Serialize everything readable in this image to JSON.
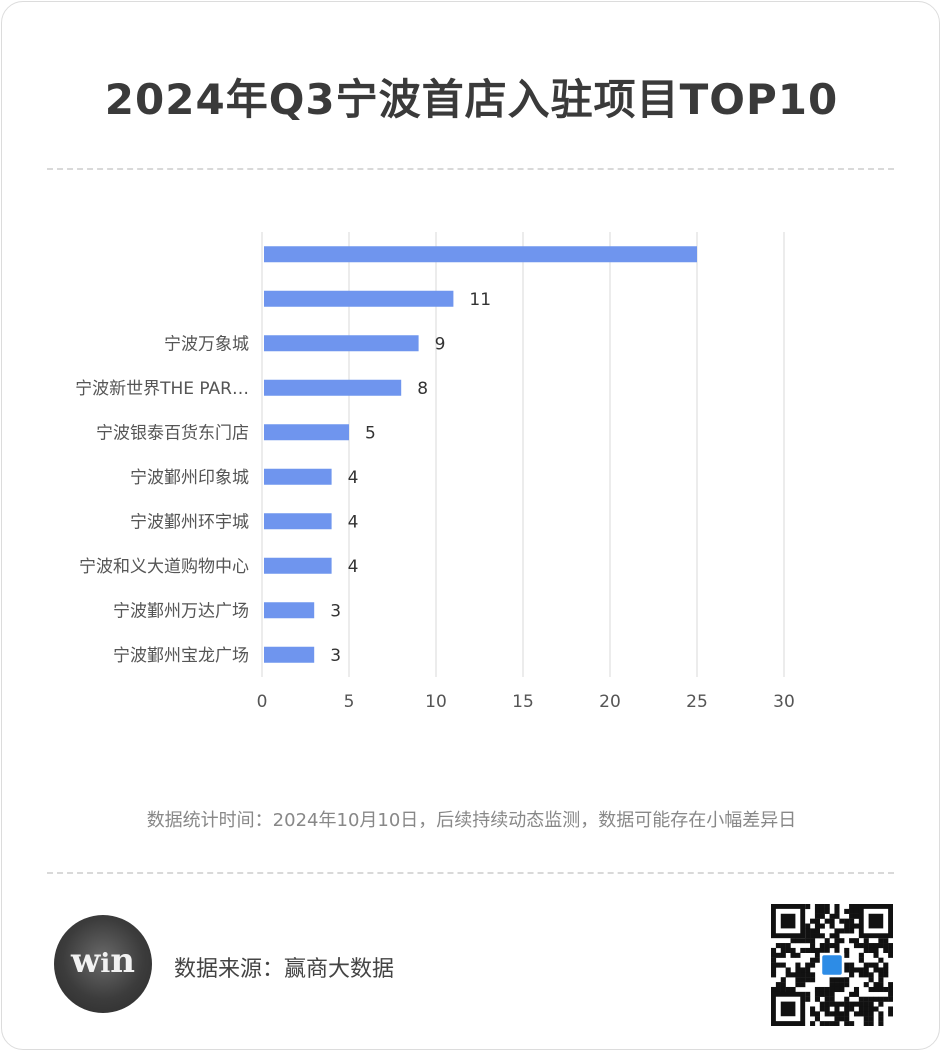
{
  "title": "2024年Q3宁波首店入驻项目TOP10",
  "footnote": "数据统计时间：2024年10月10日，后续持续动态监测，数据可能存在小幅差异日",
  "source": "数据来源：赢商大数据",
  "logo_icon": "winshang-logo-icon",
  "qr_icon": "qr-code-icon",
  "colors": {
    "bar": "#6f95ee",
    "grid": "#d9d9d9",
    "axis_text": "#555555"
  },
  "chart_data": {
    "type": "bar",
    "orientation": "horizontal",
    "categories": [
      "",
      "",
      "宁波万象城",
      "宁波新世界THE PAR…",
      "宁波银泰百货东门店",
      "宁波鄞州印象城",
      "宁波鄞州环宇城",
      "宁波和义大道购物中心",
      "宁波鄞州万达广场",
      "宁波鄞州宝龙广场"
    ],
    "values": [
      25,
      11,
      9,
      8,
      5,
      4,
      4,
      4,
      3,
      3
    ],
    "data_labels": [
      "",
      "11",
      "9",
      "8",
      "5",
      "4",
      "4",
      "4",
      "3",
      "3"
    ],
    "xlim": [
      0,
      30
    ],
    "xticks": [
      0,
      5,
      10,
      15,
      20,
      25,
      30
    ],
    "grid": true,
    "title": "2024年Q3宁波首店入驻项目TOP10"
  }
}
